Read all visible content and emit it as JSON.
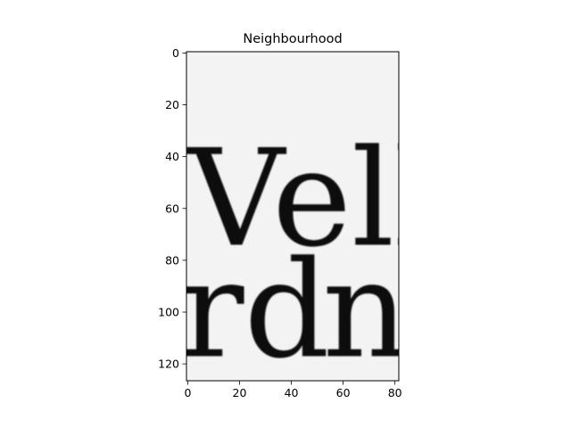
{
  "chart_data": {
    "type": "image",
    "title": "Neighbourhood",
    "xlabel": "",
    "ylabel": "",
    "xlim": [
      -0.5,
      81.5
    ],
    "ylim": [
      126.5,
      -0.5
    ],
    "x_ticks": [
      0,
      20,
      40,
      60,
      80
    ],
    "y_ticks": [
      0,
      20,
      40,
      60,
      80,
      100,
      120
    ],
    "grid": false,
    "colormap": "gray",
    "image_text": [
      {
        "text": "Vells",
        "x": 0,
        "y": 74
      },
      {
        "text": "I",
        "x": 80,
        "y": 74
      },
      {
        "text": "rd",
        "x": -3,
        "y": 117
      },
      {
        "text": "nu",
        "x": 52,
        "y": 117
      }
    ]
  }
}
